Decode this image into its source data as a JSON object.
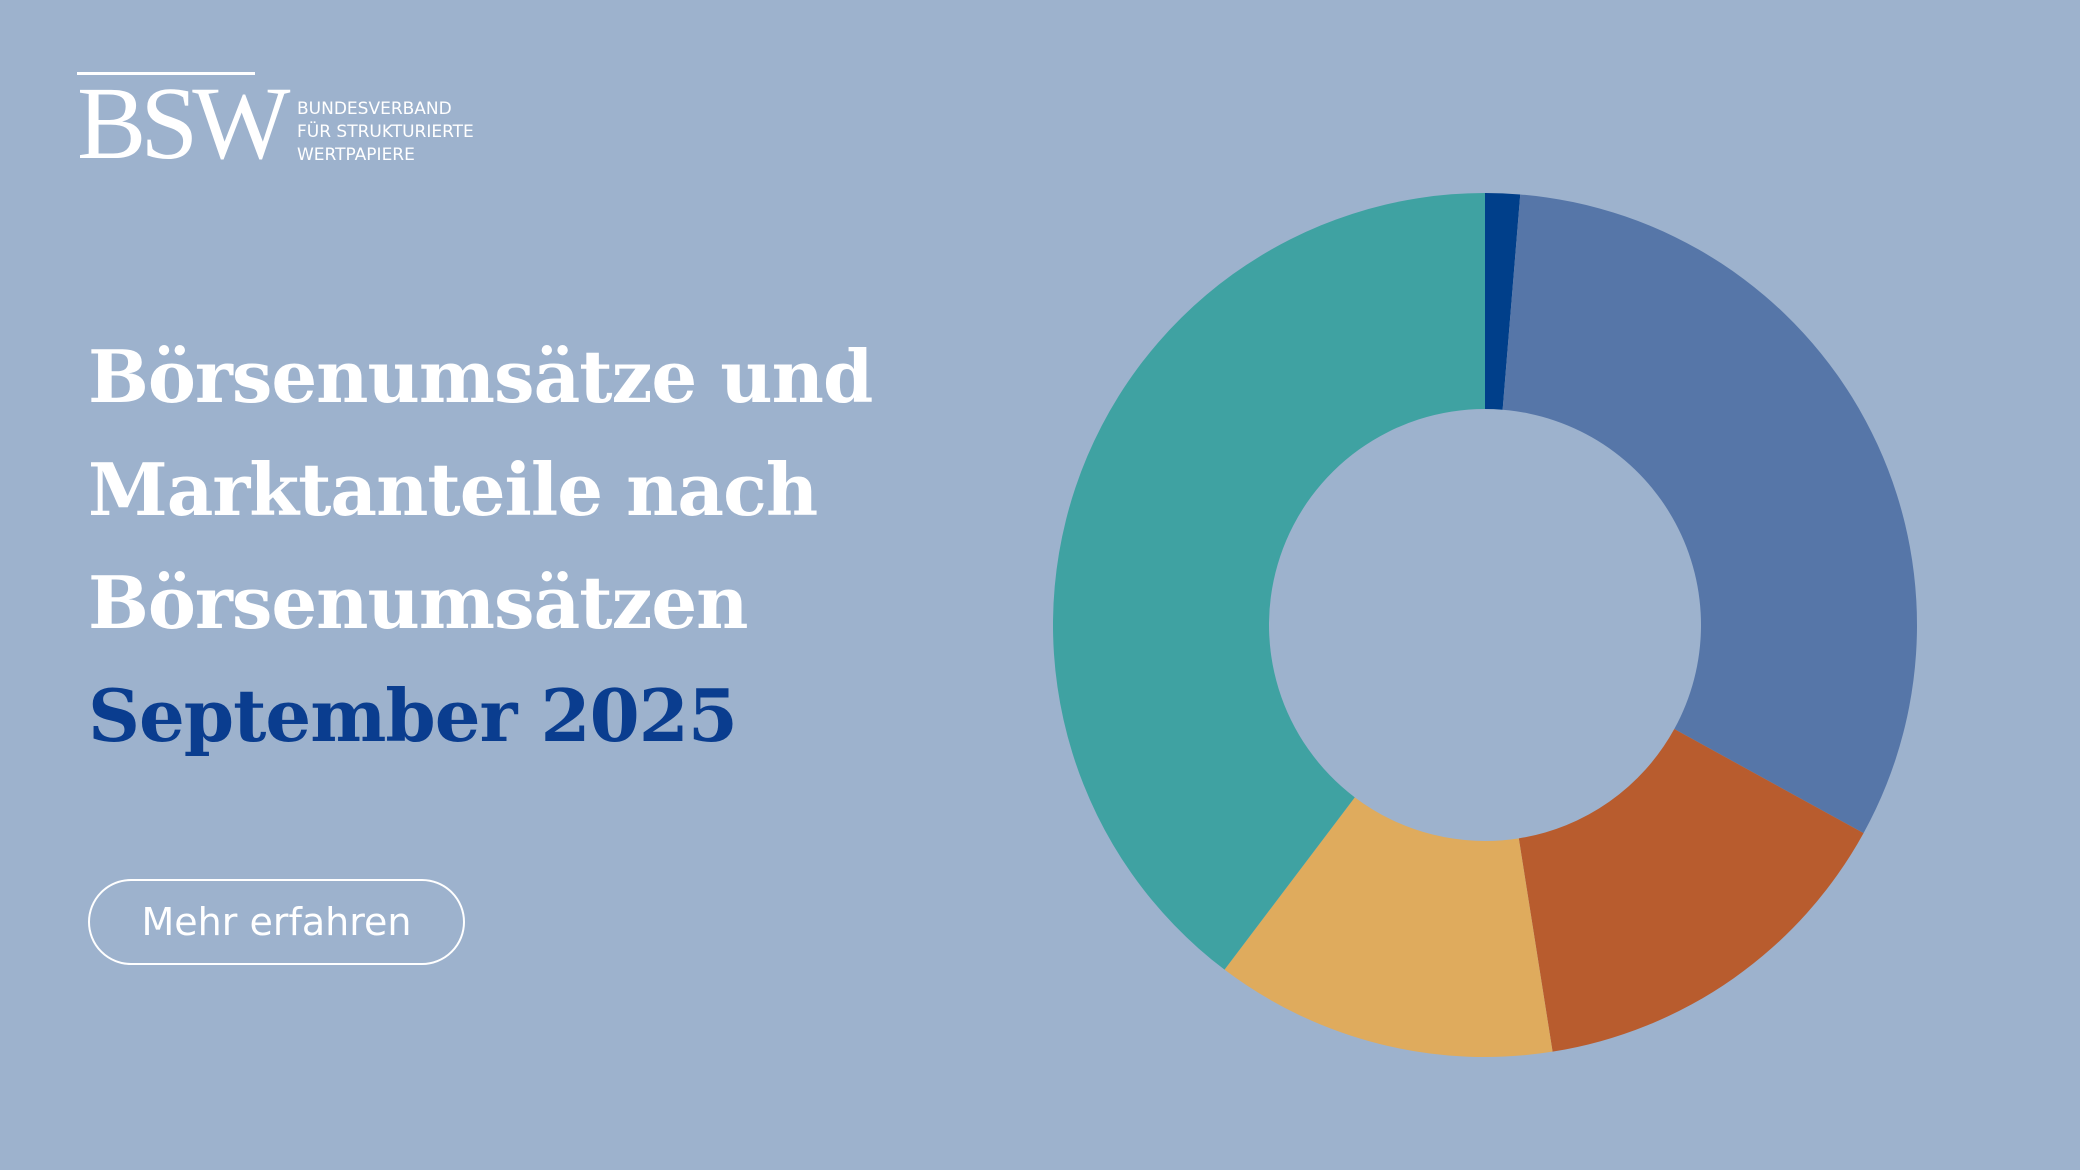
{
  "colors": {
    "background": "#9db2cd",
    "heading": "#ffffff",
    "accent": "#0a3d8f",
    "button_border": "#ffffff",
    "button_text": "#ffffff",
    "logo": "#ffffff"
  },
  "logo": {
    "mark": "BSW",
    "lines": [
      "BUNDESVERBAND",
      "FÜR STRUKTURIERTE",
      "WERTPAPIERE"
    ]
  },
  "headline": {
    "line1": "Börsenumsätze und",
    "line2": "Marktanteile nach",
    "line3": "Börsenumsätzen",
    "date": "September 2025"
  },
  "cta": {
    "label": "Mehr erfahren"
  },
  "chart_data": {
    "type": "pie",
    "variant": "donut",
    "start_angle_deg": 0,
    "inner_radius_ratio": 0.5,
    "legend": "none",
    "slices": [
      {
        "value": 1.3,
        "color": "#003f8a"
      },
      {
        "value": 31.7,
        "color": "#5676a8"
      },
      {
        "value": 14.5,
        "color": "#b85c2e"
      },
      {
        "value": 12.8,
        "color": "#dfab5d"
      },
      {
        "value": 39.7,
        "color": "#3fa2a2"
      }
    ]
  }
}
